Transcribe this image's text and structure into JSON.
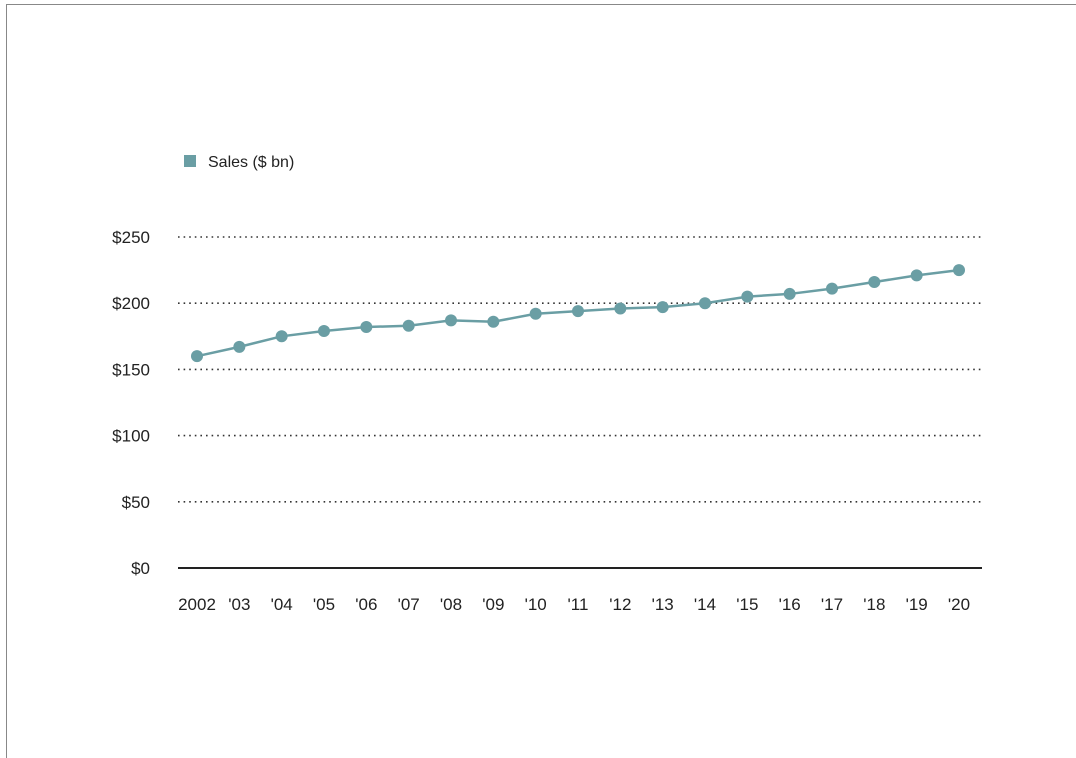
{
  "chart_data": {
    "type": "line",
    "title": "",
    "xlabel": "",
    "ylabel": "",
    "categories": [
      "2002",
      "'03",
      "'04",
      "'05",
      "'06",
      "'07",
      "'08",
      "'09",
      "'10",
      "'11",
      "'12",
      "'13",
      "'14",
      "'15",
      "'16",
      "'17",
      "'18",
      "'19",
      "'20"
    ],
    "series": [
      {
        "name": "Sales ($ bn)",
        "color": "#6a9ea4",
        "values": [
          160,
          167,
          175,
          179,
          182,
          183,
          187,
          186,
          192,
          194,
          196,
          197,
          200,
          205,
          207,
          211,
          216,
          221,
          225
        ]
      }
    ],
    "y_ticks": [
      "$0",
      "$50",
      "$100",
      "$150",
      "$200",
      "$250"
    ],
    "y_tick_values": [
      0,
      50,
      100,
      150,
      200,
      250
    ],
    "ylim": [
      0,
      250
    ],
    "grid": "dotted horizontal",
    "legend_position": "top-left"
  }
}
